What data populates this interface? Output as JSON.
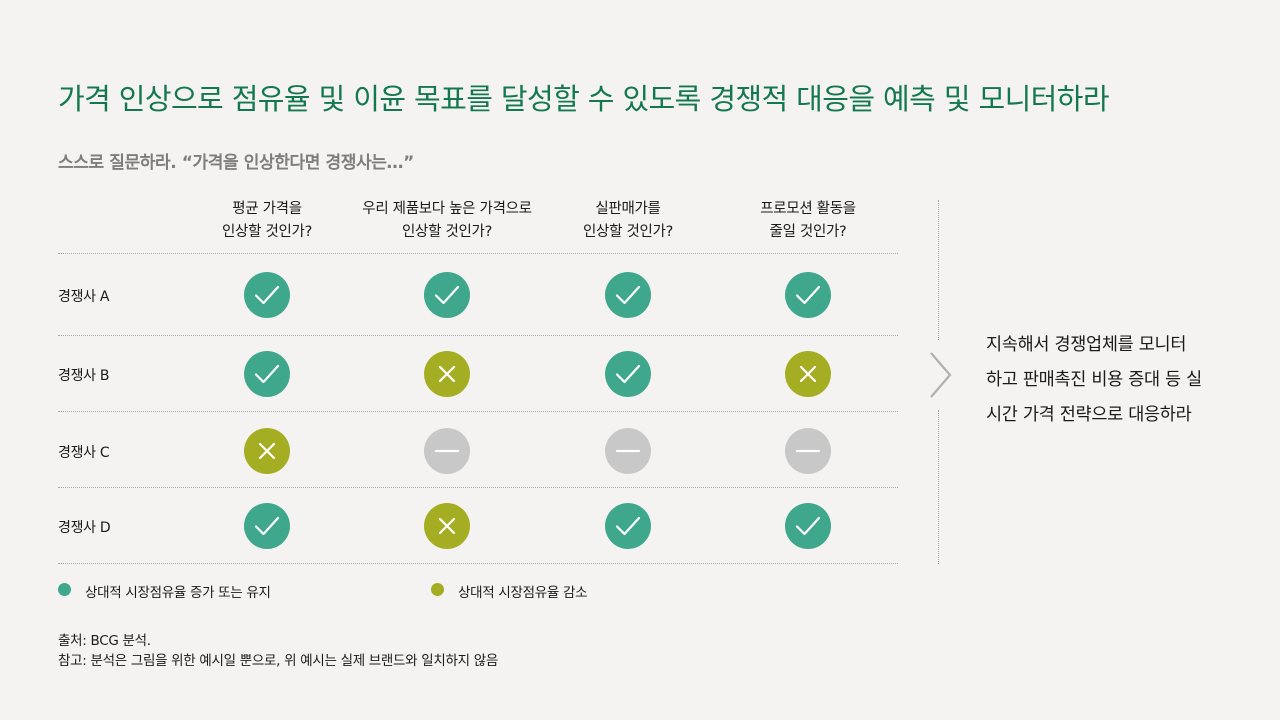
{
  "title": "가격 인상으로 점유율 및 이윤 목표를 달성할 수 있도록 경쟁적 대응을 예측 및 모니터하라",
  "subtitle": "스스로 질문하라. “가격을 인상한다면 경쟁사는…”",
  "columns": [
    {
      "line1": "평균 가격을",
      "line2": "인상할 것인가?"
    },
    {
      "line1": "우리 제품보다 높은 가격으로",
      "line2": "인상할 것인가?"
    },
    {
      "line1": "실판매가를",
      "line2": "인상할 것인가?"
    },
    {
      "line1": "프로모션 활동을",
      "line2": "줄일 것인가?"
    }
  ],
  "rows": [
    {
      "label": "경쟁사 A",
      "values": [
        "check",
        "check",
        "check",
        "check"
      ]
    },
    {
      "label": "경쟁사 B",
      "values": [
        "check",
        "cross",
        "check",
        "cross"
      ]
    },
    {
      "label": "경쟁사 C",
      "values": [
        "cross",
        "dash",
        "dash",
        "dash"
      ]
    },
    {
      "label": "경쟁사 D",
      "values": [
        "check",
        "cross",
        "check",
        "check"
      ]
    }
  ],
  "mark_icons": {
    "check": "check-icon",
    "cross": "cross-icon",
    "dash": "dash-icon"
  },
  "conclusion": {
    "line1": "지속해서  경쟁업체를  모니터",
    "line2": "하고 판매촉진 비용 증대 등 실",
    "line3": "시간 가격 전략으로 대응하라"
  },
  "legend": [
    {
      "label": "상대적 시장점유율 증가 또는 유지",
      "color": "#3fa78c"
    },
    {
      "label": "상대적 시장점유율 감소",
      "color": "#a5ad22"
    }
  ],
  "colors": {
    "title": "#14784e",
    "check": "#3fa78c",
    "cross": "#a5ad22",
    "neutral": "#c8c8c8"
  },
  "source": "출처: BCG 분석.",
  "note": "참고: 분석은 그림을 위한 예시일 뿐으로, 위 예시는 실제 브랜드와 일치하지 않음"
}
